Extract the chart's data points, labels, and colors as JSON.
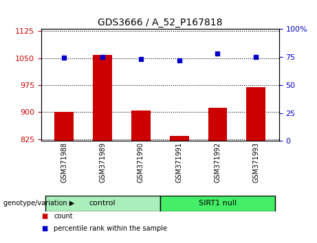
{
  "title": "GDS3666 / A_52_P167818",
  "samples": [
    "GSM371988",
    "GSM371989",
    "GSM371990",
    "GSM371991",
    "GSM371992",
    "GSM371993"
  ],
  "count_values": [
    900,
    1058,
    905,
    833,
    912,
    970
  ],
  "percentile_values": [
    74.5,
    75,
    73,
    72,
    78,
    75
  ],
  "ylim_left": [
    820,
    1130
  ],
  "ylim_right": [
    0,
    100
  ],
  "yticks_left": [
    825,
    900,
    975,
    1050,
    1125
  ],
  "yticks_right": [
    0,
    25,
    50,
    75,
    100
  ],
  "bar_color": "#cc0000",
  "dot_color": "#0000cc",
  "bar_width": 0.5,
  "groups": [
    {
      "label": "control",
      "indices": [
        0,
        1,
        2
      ],
      "color": "#aaeebb"
    },
    {
      "label": "SIRT1 null",
      "indices": [
        3,
        4,
        5
      ],
      "color": "#44ee66"
    }
  ],
  "legend_count_label": "count",
  "legend_percentile_label": "percentile rank within the sample",
  "grid_color": "black",
  "sample_box_color": "#d8d8d8",
  "plot_bg": "white"
}
